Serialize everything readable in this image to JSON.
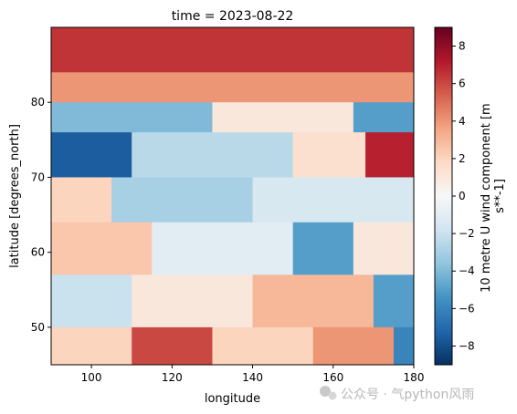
{
  "chart_data": {
    "type": "heatmap",
    "title": "time = 2023-08-22",
    "xlabel": "longitude",
    "ylabel": "latitude [degrees_north]",
    "xlim": [
      90,
      180
    ],
    "ylim": [
      45,
      90
    ],
    "x_ticks": [
      {
        "value": 100,
        "label": "100"
      },
      {
        "value": 120,
        "label": "120"
      },
      {
        "value": 140,
        "label": "140"
      },
      {
        "value": 160,
        "label": "160"
      },
      {
        "value": 180,
        "label": "180"
      }
    ],
    "y_ticks": [
      {
        "value": 50,
        "label": "50"
      },
      {
        "value": 60,
        "label": "60"
      },
      {
        "value": 70,
        "label": "70"
      },
      {
        "value": 80,
        "label": "80"
      }
    ],
    "colorbar": {
      "label_line1": "10 metre U wind component [m",
      "label_line2": "s**-1]",
      "vmin": -9,
      "vmax": 9,
      "ticks": [
        {
          "value": 8,
          "label": "8"
        },
        {
          "value": 6,
          "label": "6"
        },
        {
          "value": 4,
          "label": "4"
        },
        {
          "value": 2,
          "label": "2"
        },
        {
          "value": 0,
          "label": "0"
        },
        {
          "value": -2,
          "label": "−2"
        },
        {
          "value": -4,
          "label": "−4"
        },
        {
          "value": -6,
          "label": "−6"
        },
        {
          "value": -8,
          "label": "−8"
        }
      ],
      "colormap": "RdBu_r",
      "stops": [
        "#053061",
        "#2166ac",
        "#4393c3",
        "#92c5de",
        "#d1e5f0",
        "#f7f7f7",
        "#fddbc7",
        "#f4a582",
        "#d6604d",
        "#b2182b",
        "#67001f"
      ]
    },
    "cells": [
      {
        "lon0": 90,
        "lon1": 180,
        "lat0": 84,
        "lat1": 90,
        "value": 6.5
      },
      {
        "lon0": 90,
        "lon1": 180,
        "lat0": 80,
        "lat1": 84,
        "value": 4.0
      },
      {
        "lon0": 90,
        "lon1": 130,
        "lat0": 76,
        "lat1": 80,
        "value": -4.0
      },
      {
        "lon0": 130,
        "lon1": 165,
        "lat0": 76,
        "lat1": 80,
        "value": 1.0
      },
      {
        "lon0": 165,
        "lon1": 180,
        "lat0": 76,
        "lat1": 80,
        "value": -5.0
      },
      {
        "lon0": 90,
        "lon1": 110,
        "lat0": 70,
        "lat1": 76,
        "value": -7.5
      },
      {
        "lon0": 110,
        "lon1": 150,
        "lat0": 70,
        "lat1": 76,
        "value": -2.5
      },
      {
        "lon0": 150,
        "lon1": 168,
        "lat0": 70,
        "lat1": 76,
        "value": 1.5
      },
      {
        "lon0": 168,
        "lon1": 180,
        "lat0": 70,
        "lat1": 76,
        "value": 7.0
      },
      {
        "lon0": 90,
        "lon1": 105,
        "lat0": 64,
        "lat1": 70,
        "value": 2.0
      },
      {
        "lon0": 105,
        "lon1": 140,
        "lat0": 64,
        "lat1": 70,
        "value": -3.0
      },
      {
        "lon0": 140,
        "lon1": 180,
        "lat0": 64,
        "lat1": 70,
        "value": -1.5
      },
      {
        "lon0": 90,
        "lon1": 115,
        "lat0": 57,
        "lat1": 64,
        "value": 2.5
      },
      {
        "lon0": 115,
        "lon1": 150,
        "lat0": 57,
        "lat1": 64,
        "value": -1.0
      },
      {
        "lon0": 150,
        "lon1": 165,
        "lat0": 57,
        "lat1": 64,
        "value": -5.0
      },
      {
        "lon0": 165,
        "lon1": 180,
        "lat0": 57,
        "lat1": 64,
        "value": 1.0
      },
      {
        "lon0": 90,
        "lon1": 110,
        "lat0": 50,
        "lat1": 57,
        "value": -2.0
      },
      {
        "lon0": 110,
        "lon1": 140,
        "lat0": 50,
        "lat1": 57,
        "value": 1.0
      },
      {
        "lon0": 140,
        "lon1": 170,
        "lat0": 50,
        "lat1": 57,
        "value": 3.0
      },
      {
        "lon0": 170,
        "lon1": 180,
        "lat0": 50,
        "lat1": 57,
        "value": -5.0
      },
      {
        "lon0": 90,
        "lon1": 110,
        "lat0": 45,
        "lat1": 50,
        "value": 2.0
      },
      {
        "lon0": 110,
        "lon1": 130,
        "lat0": 45,
        "lat1": 50,
        "value": 6.0
      },
      {
        "lon0": 130,
        "lon1": 155,
        "lat0": 45,
        "lat1": 50,
        "value": 2.0
      },
      {
        "lon0": 155,
        "lon1": 175,
        "lat0": 45,
        "lat1": 50,
        "value": 4.0
      },
      {
        "lon0": 175,
        "lon1": 180,
        "lat0": 45,
        "lat1": 50,
        "value": -6.0
      }
    ]
  },
  "watermark": "公众号 · 气python风雨"
}
